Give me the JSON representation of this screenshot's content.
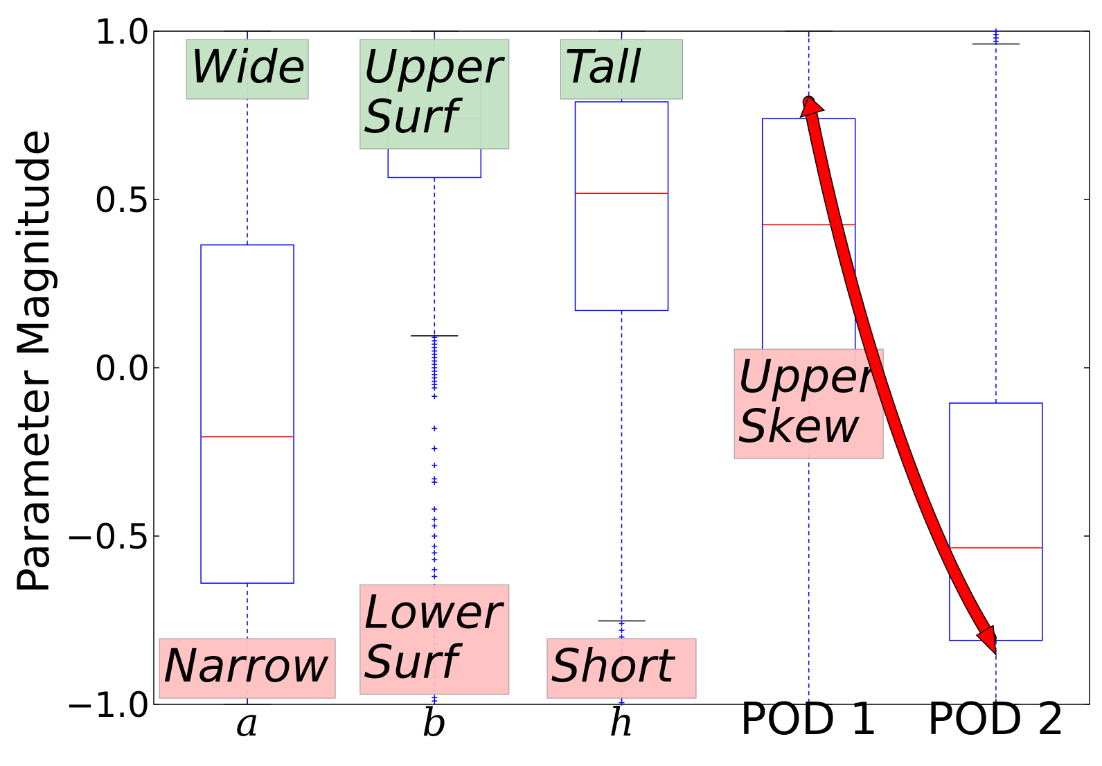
{
  "chart_data": {
    "type": "box",
    "ylabel": "Parameter Magnitude",
    "xlabel": "",
    "title": "",
    "ylim": [
      -1.0,
      1.0
    ],
    "yticks": [
      1.0,
      0.5,
      0.0,
      -0.5,
      -1.0
    ],
    "ytick_labels": [
      "1.0",
      "0.5",
      "0.0",
      "−0.5",
      "−1.0"
    ],
    "grid": false,
    "colors": {
      "box": "#0000ff",
      "median": "#ff0000",
      "whisker_cap": "#000000",
      "arrow": "#ff0000",
      "good": "#c1e1c1",
      "bad": "#ffc0c0"
    },
    "categories": [
      {
        "label": "a",
        "style": "math",
        "q1": -0.64,
        "median": -0.205,
        "q3": 0.365,
        "whisker_low": -1.0,
        "whisker_high": 1.0,
        "outliers": []
      },
      {
        "label": "b",
        "style": "math",
        "q1": 0.565,
        "median": 0.74,
        "q3": 0.88,
        "whisker_low": 0.095,
        "whisker_high": 1.0,
        "outliers": [
          0.09,
          0.08,
          0.07,
          0.06,
          0.05,
          0.04,
          0.03,
          0.02,
          0.01,
          0.0,
          -0.01,
          -0.02,
          -0.03,
          -0.04,
          -0.05,
          -0.06,
          -0.085,
          -0.18,
          -0.24,
          -0.29,
          -0.33,
          -0.34,
          -0.42,
          -0.45,
          -0.47,
          -0.5,
          -0.53,
          -0.55,
          -0.57,
          -0.6,
          -0.62,
          -0.65,
          -0.68,
          -0.7,
          -0.72,
          -0.74,
          -0.76,
          -0.78,
          -0.8,
          -0.82,
          -0.84,
          -0.86,
          -0.88,
          -0.9,
          -0.92,
          -0.94,
          -0.96,
          -0.98,
          -0.99
        ]
      },
      {
        "label": "h",
        "style": "math",
        "q1": 0.17,
        "median": 0.518,
        "q3": 0.79,
        "whisker_low": -0.752,
        "whisker_high": 1.0,
        "outliers": [
          -0.76,
          -0.78,
          -0.8,
          -0.82,
          -0.84,
          -0.86,
          -0.88,
          -0.9,
          -0.92,
          -0.94,
          -0.96,
          -0.98,
          -0.995
        ]
      },
      {
        "label": "POD 1",
        "style": "plain",
        "q1": -0.01,
        "median": 0.425,
        "q3": 0.74,
        "whisker_low": -1.0,
        "whisker_high": 1.0,
        "outliers": []
      },
      {
        "label": "POD 2",
        "style": "plain",
        "q1": -0.81,
        "median": -0.535,
        "q3": -0.105,
        "whisker_low": -1.0,
        "whisker_high": 0.962,
        "outliers": [
          0.97,
          0.98,
          0.99,
          1.0
        ]
      }
    ],
    "annotations": [
      {
        "lines": [
          "Wide"
        ],
        "kind": "good",
        "category": 0,
        "y_top": 1.0
      },
      {
        "lines": [
          "Narrow"
        ],
        "kind": "bad",
        "category": 0,
        "y_top": -0.78
      },
      {
        "lines": [
          "Upper",
          "Surf"
        ],
        "kind": "good",
        "category": 1,
        "y_top": 1.0
      },
      {
        "lines": [
          "Lower",
          "Surf"
        ],
        "kind": "bad",
        "category": 1,
        "y_top": -0.62
      },
      {
        "lines": [
          "Tall"
        ],
        "kind": "good",
        "category": 2,
        "y_top": 1.0
      },
      {
        "lines": [
          "Short"
        ],
        "kind": "bad",
        "category": 2,
        "y_top": -0.78
      },
      {
        "lines": [
          "Upper",
          "Skew"
        ],
        "kind": "bad",
        "category": 3,
        "y_top": 0.08
      }
    ],
    "arrow": {
      "from_category": 3,
      "from_y": 0.79,
      "to_category": 4,
      "to_y": -0.84
    }
  }
}
